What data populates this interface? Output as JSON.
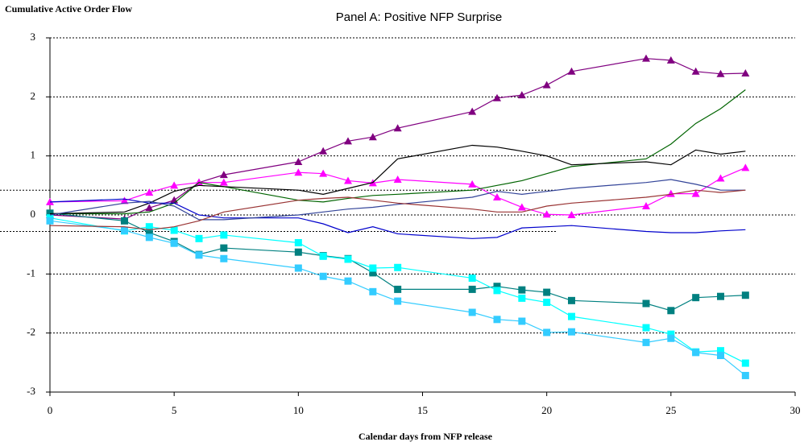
{
  "chart_data": {
    "type": "line",
    "title": "Panel A:  Positive NFP Surprise",
    "y_label": "Cumulative Active Order Flow",
    "x_label": "Calendar days from NFP release",
    "x": [
      0,
      3,
      4,
      5,
      6,
      7,
      10,
      11,
      12,
      13,
      14,
      17,
      18,
      19,
      20,
      21,
      24,
      25,
      26,
      27,
      28
    ],
    "xlim": [
      0,
      30
    ],
    "xticks": [
      0,
      5,
      10,
      15,
      20,
      25,
      30
    ],
    "ylim": [
      -3,
      3
    ],
    "yticks": [
      -3,
      -2,
      -1,
      0,
      1,
      2,
      3
    ],
    "grid": true,
    "reference_lines": [
      0.42,
      -0.28
    ],
    "series": [
      {
        "color": "#800080",
        "marker": "triangle",
        "values": [
          0.0,
          -0.07,
          0.12,
          0.25,
          0.55,
          0.68,
          0.9,
          1.08,
          1.25,
          1.32,
          1.47,
          1.75,
          1.98,
          2.03,
          2.2,
          2.43,
          2.65,
          2.62,
          2.43,
          2.39,
          2.4
        ]
      },
      {
        "color": "#ff00ff",
        "marker": "triangle",
        "values": [
          0.22,
          0.24,
          0.38,
          0.5,
          0.55,
          0.55,
          0.72,
          0.7,
          0.58,
          0.54,
          0.6,
          0.52,
          0.3,
          0.13,
          0.01,
          0.0,
          0.15,
          0.36,
          0.36,
          0.62,
          0.8
        ]
      },
      {
        "color": "#008080",
        "marker": "square",
        "values": [
          0.03,
          -0.1,
          -0.3,
          -0.45,
          -0.67,
          -0.56,
          -0.63,
          -0.69,
          -0.74,
          -0.98,
          -1.26,
          -1.26,
          -1.21,
          -1.27,
          -1.31,
          -1.45,
          -1.5,
          -1.62,
          -1.4,
          -1.38,
          -1.36
        ]
      },
      {
        "color": "#00ffff",
        "marker": "square",
        "values": [
          -0.05,
          -0.27,
          -0.2,
          -0.26,
          -0.4,
          -0.34,
          -0.47,
          -0.7,
          -0.75,
          -0.9,
          -0.89,
          -1.07,
          -1.28,
          -1.41,
          -1.48,
          -1.72,
          -1.91,
          -2.02,
          -2.32,
          -2.3,
          -2.51
        ]
      },
      {
        "color": "#33ccff",
        "marker": "square",
        "values": [
          -0.1,
          -0.26,
          -0.38,
          -0.48,
          -0.68,
          -0.74,
          -0.9,
          -1.04,
          -1.12,
          -1.3,
          -1.46,
          -1.65,
          -1.77,
          -1.8,
          -1.99,
          -1.98,
          -2.16,
          -2.09,
          -2.33,
          -2.38,
          -2.72
        ]
      },
      {
        "color": "#006400",
        "marker": "none",
        "values": [
          0.02,
          0.02,
          0.05,
          0.2,
          0.55,
          0.48,
          0.25,
          0.22,
          0.28,
          0.33,
          0.35,
          0.42,
          0.5,
          0.58,
          0.7,
          0.82,
          0.95,
          1.2,
          1.55,
          1.8,
          2.12
        ]
      },
      {
        "color": "#000000",
        "marker": "none",
        "values": [
          0.02,
          0.05,
          0.2,
          0.4,
          0.5,
          0.48,
          0.42,
          0.35,
          0.45,
          0.55,
          0.95,
          1.18,
          1.15,
          1.08,
          1.0,
          0.85,
          0.9,
          0.85,
          1.1,
          1.03,
          1.08
        ]
      },
      {
        "color": "#0000cc",
        "marker": "none",
        "values": [
          0.22,
          0.27,
          0.2,
          0.2,
          0.0,
          -0.05,
          -0.05,
          -0.15,
          -0.3,
          -0.2,
          -0.32,
          -0.4,
          -0.38,
          -0.22,
          -0.2,
          -0.18,
          -0.28,
          -0.3,
          -0.3,
          -0.27,
          -0.25
        ]
      },
      {
        "color": "#334499",
        "marker": "none",
        "values": [
          0.0,
          0.2,
          0.23,
          0.15,
          -0.08,
          -0.08,
          0.0,
          0.05,
          0.1,
          0.13,
          0.18,
          0.3,
          0.4,
          0.35,
          0.4,
          0.45,
          0.55,
          0.6,
          0.52,
          0.42,
          0.42
        ]
      },
      {
        "color": "#993333",
        "marker": "none",
        "values": [
          -0.18,
          -0.2,
          -0.25,
          -0.2,
          -0.1,
          0.05,
          0.25,
          0.28,
          0.3,
          0.25,
          0.2,
          0.1,
          0.05,
          0.05,
          0.15,
          0.2,
          0.3,
          0.35,
          0.42,
          0.38,
          0.42
        ]
      }
    ]
  }
}
